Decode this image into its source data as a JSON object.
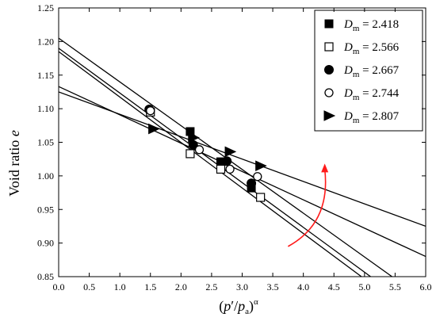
{
  "chart_data": {
    "type": "scatter",
    "title": "",
    "subtitle": "",
    "xlabel": {
      "prefix": "(",
      "symbol": "p",
      "prime": "′",
      "slash": "/",
      "denom": "p",
      "subscript": "a",
      "suffix": ")",
      "superscript": "α"
    },
    "ylabel": {
      "text": "Void ratio ",
      "symbol": "e"
    },
    "xlim": [
      0.0,
      6.0
    ],
    "ylim": [
      0.85,
      1.25
    ],
    "xticks": [
      0.0,
      0.5,
      1.0,
      1.5,
      2.0,
      2.5,
      3.0,
      3.5,
      4.0,
      4.5,
      5.0,
      5.5,
      6.0
    ],
    "yticks": [
      0.85,
      0.9,
      0.95,
      1.0,
      1.05,
      1.1,
      1.15,
      1.2,
      1.25
    ],
    "xtick_labels": [
      "0.0",
      "0.5",
      "1.0",
      "1.5",
      "2.0",
      "2.5",
      "3.0",
      "3.5",
      "4.0",
      "4.5",
      "5.0",
      "5.5",
      "6.0"
    ],
    "ytick_labels": [
      "0.85",
      "0.90",
      "0.95",
      "1.00",
      "1.05",
      "1.10",
      "1.15",
      "1.20",
      "1.25"
    ],
    "grid": false,
    "legend": {
      "placement": "top-right",
      "symbol_text": "D",
      "subscript_text": "m",
      "equals_text": " = "
    },
    "series": [
      {
        "name": "2.418",
        "marker": "square-filled",
        "points": [
          {
            "x": 2.15,
            "y": 1.066
          },
          {
            "x": 2.65,
            "y": 1.021
          },
          {
            "x": 3.15,
            "y": 0.982
          }
        ],
        "fit": [
          [
            0.0,
            1.125
          ],
          [
            6.0,
            0.925
          ]
        ]
      },
      {
        "name": "2.566",
        "marker": "square-open",
        "points": [
          {
            "x": 1.5,
            "y": 1.095
          },
          {
            "x": 2.15,
            "y": 1.033
          },
          {
            "x": 2.65,
            "y": 1.01
          },
          {
            "x": 3.3,
            "y": 0.968
          }
        ],
        "fit": [
          [
            0.0,
            1.205
          ],
          [
            5.45,
            0.85
          ]
        ]
      },
      {
        "name": "2.667",
        "marker": "circle-filled",
        "points": [
          {
            "x": 1.48,
            "y": 1.099
          },
          {
            "x": 2.2,
            "y": 1.046
          },
          {
            "x": 2.75,
            "y": 1.022
          },
          {
            "x": 3.15,
            "y": 0.989
          }
        ],
        "fit": [
          [
            0.0,
            1.19
          ],
          [
            5.1,
            0.85
          ]
        ]
      },
      {
        "name": "2.744",
        "marker": "circle-open",
        "points": [
          {
            "x": 1.5,
            "y": 1.097
          },
          {
            "x": 2.3,
            "y": 1.039
          },
          {
            "x": 2.8,
            "y": 1.01
          },
          {
            "x": 3.25,
            "y": 0.999
          }
        ],
        "fit": [
          [
            0.0,
            1.185
          ],
          [
            4.95,
            0.85
          ]
        ]
      },
      {
        "name": "2.807",
        "marker": "triangle-right-filled",
        "points": [
          {
            "x": 1.55,
            "y": 1.07
          },
          {
            "x": 2.2,
            "y": 1.057
          },
          {
            "x": 2.8,
            "y": 1.036
          },
          {
            "x": 3.3,
            "y": 1.015
          }
        ],
        "fit": [
          [
            0.0,
            1.133
          ],
          [
            6.0,
            0.88
          ]
        ]
      }
    ],
    "annotation": {
      "type": "curved-arrow",
      "color": "#ff1a1a",
      "from": {
        "x": 3.75,
        "y": 0.895
      },
      "control": {
        "x": 4.45,
        "y": 0.93
      },
      "to": {
        "x": 4.35,
        "y": 1.01
      }
    }
  }
}
